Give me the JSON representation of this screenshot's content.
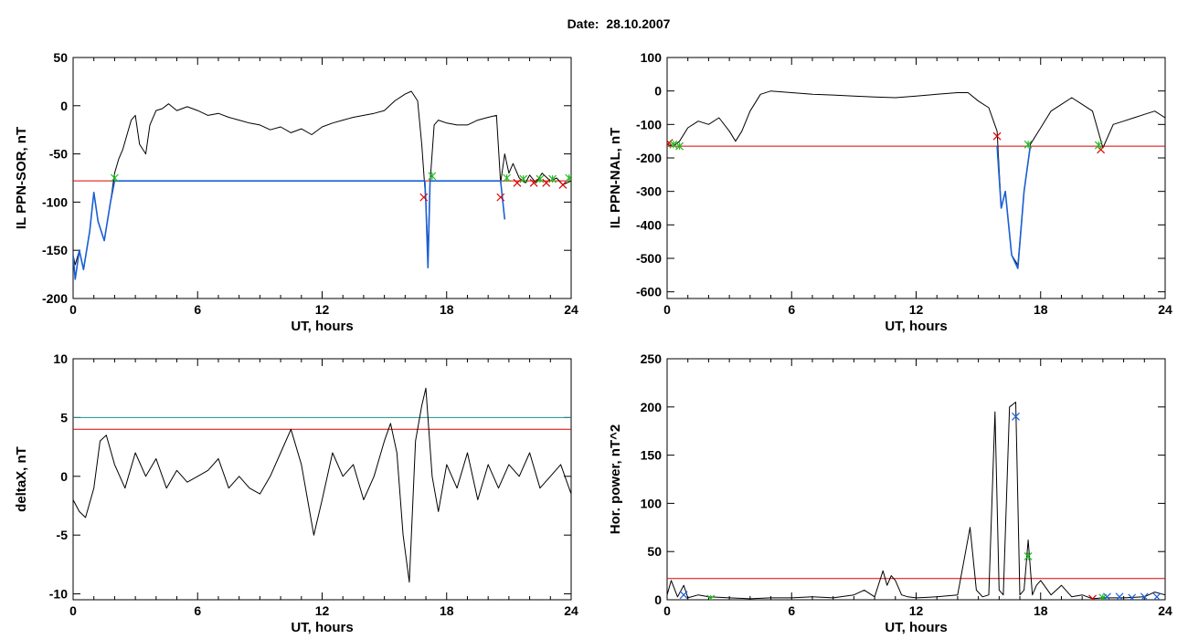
{
  "page_title": "Date:  28.10.2007",
  "chart_data": [
    {
      "id": "sor",
      "type": "line",
      "xlabel": "UT, hours",
      "ylabel": "IL PPN-SOR, nT",
      "xlim": [
        0,
        24
      ],
      "ylim": [
        -200,
        50
      ],
      "xticks": [
        0,
        6,
        12,
        18,
        24
      ],
      "yticks": [
        -200,
        -150,
        -100,
        -50,
        0,
        50
      ],
      "threshold_lines": [
        {
          "value": -78,
          "color": "#dd0000"
        }
      ],
      "series": [
        {
          "color": "#000000",
          "x": [
            0,
            0.1,
            0.3,
            0.5,
            0.8,
            1.0,
            1.2,
            1.5,
            1.8,
            2.0,
            2.2,
            2.4,
            2.6,
            2.8,
            3.0,
            3.2,
            3.5,
            3.7,
            4.0,
            4.3,
            4.6,
            5.0,
            5.5,
            6.0,
            6.5,
            7.0,
            7.5,
            8.0,
            8.5,
            9.0,
            9.5,
            10.0,
            10.5,
            11.0,
            11.5,
            12.0,
            12.5,
            13.0,
            13.5,
            14.0,
            14.5,
            15.0,
            15.5,
            16.0,
            16.3,
            16.6,
            16.8,
            17.0,
            17.1,
            17.2,
            17.4,
            17.6,
            18.0,
            18.5,
            19.0,
            19.5,
            20.0,
            20.4,
            20.6,
            20.8,
            21.0,
            21.2,
            21.5,
            21.8,
            22.0,
            22.3,
            22.6,
            23.0,
            23.3,
            23.6,
            24.0
          ],
          "y": [
            -155,
            -165,
            -150,
            -170,
            -130,
            -90,
            -120,
            -140,
            -100,
            -70,
            -55,
            -45,
            -30,
            -15,
            -10,
            -40,
            -50,
            -20,
            -5,
            -3,
            2,
            -5,
            -1,
            -5,
            -10,
            -8,
            -12,
            -15,
            -18,
            -20,
            -25,
            -22,
            -28,
            -24,
            -30,
            -22,
            -18,
            -15,
            -12,
            -10,
            -8,
            -5,
            5,
            12,
            15,
            5,
            -40,
            -100,
            -150,
            -80,
            -20,
            -15,
            -18,
            -20,
            -20,
            -15,
            -12,
            -10,
            -80,
            -50,
            -70,
            -60,
            -75,
            -80,
            -72,
            -80,
            -70,
            -78,
            -75,
            -82,
            -78
          ]
        },
        {
          "color": "#1a5fd6",
          "x": [
            0,
            0.1,
            0.3,
            0.5,
            0.8,
            1.0,
            1.2,
            1.5,
            1.8,
            2.0,
            16.95,
            17.0,
            17.1,
            17.2,
            20.6,
            20.8
          ],
          "y": [
            -155,
            -180,
            -150,
            -170,
            -130,
            -90,
            -120,
            -140,
            -100,
            -78,
            -78,
            -100,
            -168,
            -78,
            -78,
            -118
          ]
        }
      ],
      "markers": [
        {
          "symbol": "x",
          "color": "#dd0000",
          "x": [
            16.9,
            20.6,
            21.4,
            22.2,
            22.8,
            23.6
          ],
          "y": [
            -95,
            -95,
            -80,
            -80,
            -80,
            -82
          ]
        },
        {
          "symbol": "asterisk",
          "color": "#22bb22",
          "x": [
            2.0,
            17.3,
            20.9,
            21.7,
            22.5,
            23.1,
            23.9
          ],
          "y": [
            -75,
            -73,
            -75,
            -76,
            -76,
            -76,
            -75
          ]
        }
      ]
    },
    {
      "id": "nal",
      "type": "line",
      "xlabel": "UT, hours",
      "ylabel": "IL PPN-NAL, nT",
      "xlim": [
        0,
        24
      ],
      "ylim": [
        -620,
        100
      ],
      "xticks": [
        0,
        6,
        12,
        18,
        24
      ],
      "yticks": [
        -600,
        -500,
        -400,
        -300,
        -200,
        -100,
        0,
        100
      ],
      "threshold_lines": [
        {
          "value": -165,
          "color": "#dd0000"
        }
      ],
      "series": [
        {
          "color": "#000000",
          "x": [
            0,
            0.3,
            0.6,
            1.0,
            1.5,
            2.0,
            2.5,
            3.0,
            3.3,
            3.6,
            4.0,
            4.5,
            5.0,
            6.0,
            7.0,
            8.0,
            9.0,
            10.0,
            11.0,
            12.0,
            13.0,
            14.0,
            14.5,
            15.0,
            15.5,
            15.9,
            16.1,
            16.3,
            16.6,
            16.9,
            17.2,
            17.5,
            18.0,
            18.5,
            19.0,
            19.5,
            20.0,
            20.5,
            21.0,
            21.5,
            22.0,
            22.5,
            23.0,
            23.5,
            24.0
          ],
          "y": [
            -160,
            -165,
            -150,
            -110,
            -90,
            -100,
            -80,
            -120,
            -150,
            -120,
            -60,
            -10,
            0,
            -5,
            -10,
            -12,
            -15,
            -18,
            -20,
            -15,
            -10,
            -5,
            -5,
            -30,
            -50,
            -120,
            -350,
            -300,
            -490,
            -520,
            -300,
            -160,
            -110,
            -60,
            -40,
            -20,
            -40,
            -60,
            -170,
            -100,
            -90,
            -80,
            -70,
            -60,
            -80
          ]
        },
        {
          "color": "#1a5fd6",
          "x": [
            15.9,
            16.1,
            16.3,
            16.6,
            16.9,
            17.2,
            17.5
          ],
          "y": [
            -165,
            -350,
            -300,
            -490,
            -530,
            -300,
            -165
          ]
        }
      ],
      "markers": [
        {
          "symbol": "x",
          "color": "#dd0000",
          "x": [
            0.1,
            15.9,
            20.9
          ],
          "y": [
            -155,
            -135,
            -175
          ]
        },
        {
          "symbol": "asterisk",
          "color": "#22bb22",
          "x": [
            0.3,
            0.6,
            17.4,
            20.8
          ],
          "y": [
            -160,
            -165,
            -160,
            -162
          ]
        }
      ]
    },
    {
      "id": "deltax",
      "type": "line",
      "xlabel": "UT, hours",
      "ylabel": "deltaX, nT",
      "xlim": [
        0,
        24
      ],
      "ylim": [
        -10.5,
        10
      ],
      "xticks": [
        0,
        6,
        12,
        18,
        24
      ],
      "yticks": [
        -10,
        -5,
        0,
        5,
        10
      ],
      "threshold_lines": [
        {
          "value": 5,
          "color": "#1f8f8f"
        },
        {
          "value": 4,
          "color": "#dd0000"
        }
      ],
      "series": [
        {
          "color": "#000000",
          "x": [
            0,
            0.3,
            0.6,
            1.0,
            1.3,
            1.6,
            2.0,
            2.5,
            3.0,
            3.5,
            4.0,
            4.5,
            5.0,
            5.5,
            6.0,
            6.5,
            7.0,
            7.5,
            8.0,
            8.5,
            9.0,
            9.5,
            10.0,
            10.5,
            11.0,
            11.3,
            11.6,
            12.0,
            12.5,
            13.0,
            13.5,
            14.0,
            14.5,
            15.0,
            15.3,
            15.6,
            15.9,
            16.2,
            16.5,
            16.8,
            17.0,
            17.3,
            17.6,
            18.0,
            18.5,
            19.0,
            19.5,
            20.0,
            20.5,
            21.0,
            21.5,
            22.0,
            22.5,
            23.0,
            23.5,
            24.0
          ],
          "y": [
            -2,
            -3,
            -3.5,
            -1,
            3,
            3.5,
            1,
            -1,
            2,
            0,
            1.5,
            -1,
            0.5,
            -0.5,
            0,
            0.5,
            1.5,
            -1,
            0,
            -1,
            -1.5,
            0,
            2,
            4,
            1,
            -2,
            -5,
            -2,
            2,
            0,
            1,
            -2,
            0,
            3,
            4.5,
            2,
            -5,
            -9,
            3,
            6,
            7.5,
            0,
            -3,
            1,
            -1,
            2,
            -2,
            1,
            -1,
            1,
            0,
            2,
            -1,
            0,
            1,
            -1.5
          ]
        }
      ],
      "markers": []
    },
    {
      "id": "power",
      "type": "line",
      "xlabel": "UT, hours",
      "ylabel": "Hor. power, nT^2",
      "xlim": [
        0,
        24
      ],
      "ylim": [
        0,
        250
      ],
      "xticks": [
        0,
        6,
        12,
        18,
        24
      ],
      "yticks": [
        0,
        50,
        100,
        150,
        200,
        250
      ],
      "threshold_lines": [
        {
          "value": 22,
          "color": "#dd0000"
        }
      ],
      "series": [
        {
          "color": "#000000",
          "x": [
            0,
            0.2,
            0.5,
            0.8,
            1.0,
            1.5,
            2.0,
            3.0,
            4.0,
            5.0,
            6.0,
            7.0,
            8.0,
            9.0,
            9.5,
            10.0,
            10.4,
            10.6,
            10.8,
            11.0,
            11.3,
            11.6,
            12.0,
            13.0,
            14.0,
            14.3,
            14.6,
            14.9,
            15.2,
            15.5,
            15.8,
            16.0,
            16.2,
            16.5,
            16.8,
            17.0,
            17.2,
            17.4,
            17.6,
            17.8,
            18.0,
            18.5,
            19.0,
            19.5,
            20.0,
            20.5,
            21.0,
            22.0,
            23.0,
            23.5,
            24.0
          ],
          "y": [
            5,
            20,
            3,
            15,
            2,
            5,
            3,
            2,
            1,
            2,
            2,
            3,
            2,
            5,
            10,
            3,
            30,
            15,
            25,
            20,
            5,
            3,
            2,
            3,
            5,
            40,
            75,
            10,
            3,
            5,
            195,
            10,
            5,
            200,
            205,
            5,
            10,
            62,
            5,
            15,
            20,
            5,
            15,
            3,
            5,
            1,
            2,
            2,
            3,
            8,
            5
          ]
        }
      ],
      "markers": [
        {
          "symbol": "x",
          "color": "#1a5fd6",
          "x": [
            16.8,
            0.8,
            21.2,
            21.8,
            22.4,
            23.0,
            23.6
          ],
          "y": [
            190,
            5,
            3,
            3,
            2,
            3,
            3
          ]
        },
        {
          "symbol": "asterisk",
          "color": "#22bb22",
          "x": [
            17.4,
            2.1,
            21.0
          ],
          "y": [
            45,
            1,
            2
          ]
        },
        {
          "symbol": "x",
          "color": "#dd0000",
          "x": [
            20.5
          ],
          "y": [
            1
          ]
        }
      ]
    }
  ]
}
